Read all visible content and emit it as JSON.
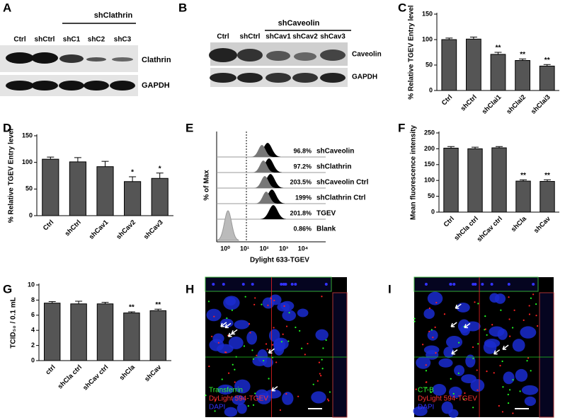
{
  "panel_a": {
    "panel": "A",
    "lanes": [
      "Ctrl",
      "shCtrl",
      "shC1",
      "shC2",
      "shC3"
    ],
    "group": "shClathrin",
    "rows": [
      "Clathrin",
      "GAPDH"
    ]
  },
  "panel_b": {
    "panel": "B",
    "lanes": [
      "Ctrl",
      "shCtrl",
      "shCav1",
      "shCav2",
      "shCav3"
    ],
    "group": "shCaveolin",
    "rows": [
      "Caveolin",
      "GAPDH"
    ]
  },
  "panel_e": {
    "panel": "E",
    "y_label": "% of Max",
    "x_label": "Dylight 633-TGEV",
    "x_ticks": [
      "10⁰",
      "10¹",
      "10²",
      "10³",
      "10⁴"
    ],
    "rows": [
      {
        "pct": "96.8%",
        "name": "shCaveolin"
      },
      {
        "pct": "97.2%",
        "name": "shClathrin"
      },
      {
        "pct": "203.5%",
        "name": "shCaveolin Ctrl"
      },
      {
        "pct": "199%",
        "name": "shClathrin Ctrl"
      },
      {
        "pct": "201.8%",
        "name": "TGEV"
      },
      {
        "pct": "0.86%",
        "name": "Blank"
      }
    ]
  },
  "panel_h": {
    "panel": "H",
    "legend": [
      "Transferrin",
      "DyLight 594-TGEV",
      "DAPI"
    ]
  },
  "panel_i": {
    "panel": "I",
    "legend": [
      "CT-B",
      "DyLight 594-TGEV",
      "DAPI"
    ]
  },
  "chart_data": [
    {
      "type": "bar",
      "panel": "C",
      "y_label": "% Relative TGEV Entry level",
      "categories": [
        "Ctrl",
        "shCtrl",
        "shClai1",
        "shClai2",
        "shClai3"
      ],
      "values": [
        100,
        101,
        71,
        59,
        48
      ],
      "errors": [
        3,
        4,
        4,
        3,
        3
      ],
      "sig": [
        null,
        null,
        "**",
        "**",
        "**"
      ],
      "color": "#555555",
      "ylim": [
        0,
        150
      ],
      "yticks": [
        0,
        50,
        100,
        150
      ]
    },
    {
      "type": "bar",
      "panel": "D",
      "y_label": "% Relative TGEV Entry level",
      "categories": [
        "Ctrl",
        "shCtrl",
        "shCav1",
        "shCav2",
        "shCav3"
      ],
      "values": [
        106,
        101,
        92,
        64,
        70
      ],
      "errors": [
        4,
        8,
        10,
        9,
        10
      ],
      "sig": [
        null,
        null,
        null,
        "*",
        "*"
      ],
      "color": "#555555",
      "ylim": [
        0,
        150
      ],
      "yticks": [
        0,
        50,
        100,
        150
      ]
    },
    {
      "type": "bar",
      "panel": "F",
      "y_label": "Mean fluorescence intensity",
      "categories": [
        "Ctrl",
        "shCla ctrl",
        "shCav ctrl",
        "shCla",
        "shCav"
      ],
      "values": [
        202,
        200,
        203,
        98,
        97
      ],
      "errors": [
        5,
        5,
        4,
        4,
        5
      ],
      "sig": [
        null,
        null,
        null,
        "**",
        "**"
      ],
      "color": "#555555",
      "ylim": [
        0,
        250
      ],
      "yticks": [
        0,
        50,
        100,
        150,
        200,
        250
      ]
    },
    {
      "type": "bar",
      "panel": "G",
      "y_label": "TCID₅₀ / 0.1 mL",
      "categories": [
        "ctrl",
        "shCla ctrl",
        "shCav ctrl",
        "shCla",
        "shCav"
      ],
      "values": [
        7.6,
        7.5,
        7.5,
        6.3,
        6.6
      ],
      "errors": [
        0.2,
        0.35,
        0.2,
        0.15,
        0.2
      ],
      "sig": [
        null,
        null,
        null,
        "**",
        "**"
      ],
      "color": "#555555",
      "ylim": [
        0,
        10
      ],
      "yticks": [
        0,
        2,
        4,
        6,
        8,
        10
      ]
    }
  ]
}
